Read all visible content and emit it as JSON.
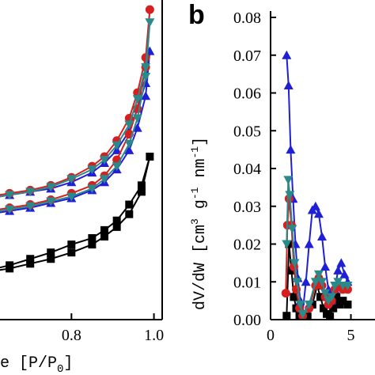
{
  "chart_data": [
    {
      "type": "line",
      "panel_label": "",
      "xlabel": "e [P/P",
      "xlabel_sub": "0",
      "xlabel_end": "]",
      "ylabel": "",
      "xlim": [
        0.55,
        1.02
      ],
      "ylim": [
        0,
        1.0
      ],
      "x_ticks": [
        {
          "value": 0.8,
          "label": "0.8"
        },
        {
          "value": 1.0,
          "label": "1.0"
        }
      ],
      "series": [
        {
          "color": "#000000",
          "marker": "square",
          "x": [
            0.55,
            0.6,
            0.65,
            0.7,
            0.75,
            0.8,
            0.85,
            0.88,
            0.91,
            0.94,
            0.97,
            0.99,
            0.97,
            0.94,
            0.91,
            0.88,
            0.85,
            0.8,
            0.75,
            0.7,
            0.65,
            0.6,
            0.55
          ],
          "y": [
            0.14,
            0.15,
            0.16,
            0.175,
            0.19,
            0.21,
            0.235,
            0.26,
            0.29,
            0.33,
            0.4,
            0.51,
            0.42,
            0.36,
            0.31,
            0.28,
            0.255,
            0.235,
            0.21,
            0.19,
            0.17,
            0.155,
            0.145
          ]
        },
        {
          "color": "#1f1fd6",
          "marker": "triangle-up",
          "x": [
            0.55,
            0.6,
            0.65,
            0.7,
            0.75,
            0.8,
            0.85,
            0.88,
            0.91,
            0.94,
            0.96,
            0.98,
            0.99,
            0.98,
            0.96,
            0.94,
            0.91,
            0.88,
            0.85,
            0.8,
            0.75,
            0.7,
            0.65,
            0.6,
            0.55
          ],
          "y": [
            0.32,
            0.33,
            0.34,
            0.35,
            0.365,
            0.38,
            0.405,
            0.43,
            0.47,
            0.53,
            0.6,
            0.7,
            0.84,
            0.74,
            0.66,
            0.59,
            0.53,
            0.49,
            0.46,
            0.43,
            0.41,
            0.4,
            0.39,
            0.38,
            0.375
          ]
        },
        {
          "color": "#d62020",
          "marker": "circle",
          "x": [
            0.55,
            0.6,
            0.65,
            0.7,
            0.75,
            0.8,
            0.85,
            0.88,
            0.91,
            0.94,
            0.96,
            0.98,
            0.99,
            0.98,
            0.96,
            0.94,
            0.91,
            0.88,
            0.85,
            0.8,
            0.75,
            0.7,
            0.65,
            0.6,
            0.55
          ],
          "y": [
            0.33,
            0.34,
            0.35,
            0.36,
            0.375,
            0.395,
            0.42,
            0.45,
            0.5,
            0.58,
            0.66,
            0.79,
            0.97,
            0.82,
            0.71,
            0.63,
            0.56,
            0.51,
            0.48,
            0.445,
            0.42,
            0.405,
            0.395,
            0.385,
            0.38
          ]
        },
        {
          "color": "#2a8a8a",
          "marker": "triangle-down",
          "x": [
            0.55,
            0.6,
            0.65,
            0.7,
            0.75,
            0.8,
            0.85,
            0.88,
            0.91,
            0.94,
            0.96,
            0.98,
            0.99,
            0.98,
            0.96,
            0.94,
            0.91,
            0.88,
            0.85,
            0.8,
            0.75,
            0.7,
            0.65,
            0.6,
            0.55
          ],
          "y": [
            0.325,
            0.335,
            0.345,
            0.355,
            0.37,
            0.385,
            0.41,
            0.44,
            0.48,
            0.55,
            0.63,
            0.76,
            0.93,
            0.79,
            0.69,
            0.61,
            0.545,
            0.5,
            0.47,
            0.44,
            0.415,
            0.4,
            0.39,
            0.38,
            0.375
          ]
        }
      ]
    },
    {
      "type": "line",
      "panel_label": "b",
      "xlabel": "",
      "ylabel": "dV/dW [cm",
      "ylabel_sup1": "3",
      "ylabel_mid": " g",
      "ylabel_sup2": "-1",
      "ylabel_mid2": " nm",
      "ylabel_sup3": "-1",
      "ylabel_end": "]",
      "xlim": [
        0,
        6.5
      ],
      "ylim": [
        0,
        0.08
      ],
      "y_ticks": [
        {
          "value": 0.0,
          "label": "0.00"
        },
        {
          "value": 0.01,
          "label": "0.01"
        },
        {
          "value": 0.02,
          "label": "0.02"
        },
        {
          "value": 0.03,
          "label": "0.03"
        },
        {
          "value": 0.04,
          "label": "0.04"
        },
        {
          "value": 0.05,
          "label": "0.05"
        },
        {
          "value": 0.06,
          "label": "0.06"
        },
        {
          "value": 0.07,
          "label": "0.07"
        },
        {
          "value": 0.08,
          "label": "0.08"
        }
      ],
      "x_ticks": [
        {
          "value": 0,
          "label": "0"
        },
        {
          "value": 5,
          "label": "5"
        }
      ],
      "series": [
        {
          "color": "#000000",
          "marker": "square",
          "x": [
            1.0,
            1.15,
            1.3,
            1.45,
            1.6,
            1.8,
            2.0,
            2.3,
            2.6,
            2.9,
            3.1,
            3.3,
            3.5,
            3.7,
            3.9,
            4.1,
            4.3,
            4.5,
            4.8
          ],
          "y": [
            0.001,
            0.02,
            0.013,
            0.006,
            0.003,
            0.001,
            0.0005,
            0.0008,
            0.004,
            0.009,
            0.006,
            0.003,
            0.0015,
            0.0008,
            0.003,
            0.006,
            0.004,
            0.005,
            0.004
          ]
        },
        {
          "color": "#1f1fd6",
          "marker": "triangle-up",
          "x": [
            1.0,
            1.12,
            1.25,
            1.4,
            1.55,
            1.7,
            1.85,
            2.0,
            2.2,
            2.4,
            2.6,
            2.8,
            3.0,
            3.2,
            3.4,
            3.6,
            3.8,
            4.0,
            4.2,
            4.4,
            4.6,
            4.8
          ],
          "y": [
            0.07,
            0.062,
            0.045,
            0.032,
            0.02,
            0.011,
            0.005,
            0.002,
            0.01,
            0.02,
            0.029,
            0.03,
            0.028,
            0.022,
            0.014,
            0.008,
            0.005,
            0.008,
            0.013,
            0.015,
            0.012,
            0.01
          ]
        },
        {
          "color": "#d62020",
          "marker": "circle",
          "x": [
            0.95,
            1.05,
            1.15,
            1.3,
            1.45,
            1.6,
            1.8,
            2.0,
            2.4,
            2.8,
            3.0,
            3.2,
            3.4,
            3.6,
            3.8,
            4.0,
            4.2,
            4.5,
            4.8
          ],
          "y": [
            0.007,
            0.025,
            0.032,
            0.025,
            0.014,
            0.008,
            0.003,
            0.001,
            0.003,
            0.009,
            0.011,
            0.009,
            0.006,
            0.004,
            0.005,
            0.008,
            0.009,
            0.008,
            0.008
          ]
        },
        {
          "color": "#2a8a8a",
          "marker": "triangle-down",
          "x": [
            1.0,
            1.1,
            1.2,
            1.35,
            1.5,
            1.65,
            1.85,
            2.0,
            2.4,
            2.8,
            3.0,
            3.2,
            3.4,
            3.6,
            3.8,
            4.0,
            4.2,
            4.5,
            4.8
          ],
          "y": [
            0.02,
            0.037,
            0.033,
            0.024,
            0.015,
            0.01,
            0.004,
            0.0015,
            0.004,
            0.01,
            0.012,
            0.01,
            0.007,
            0.005,
            0.006,
            0.009,
            0.01,
            0.009,
            0.009
          ]
        }
      ]
    }
  ]
}
